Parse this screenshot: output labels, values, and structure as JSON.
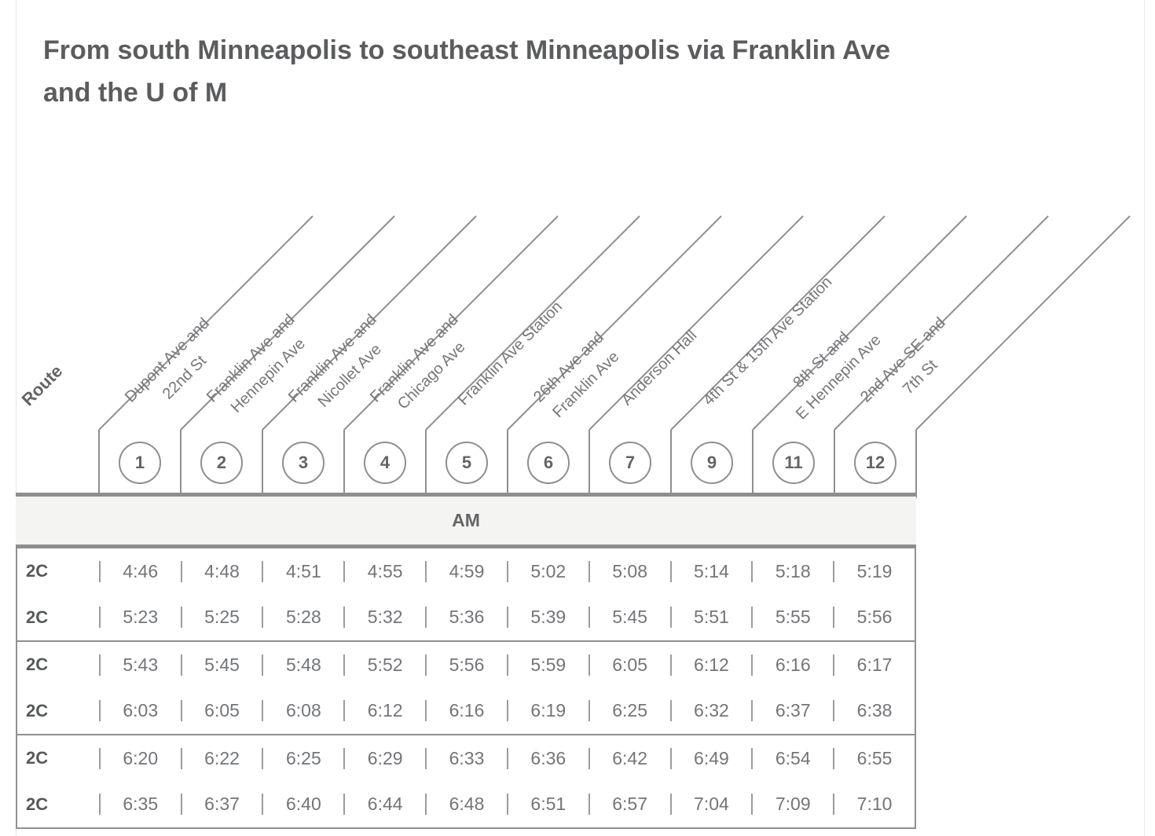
{
  "title": "From south Minneapolis to southeast Minneapolis via Franklin Ave and the U of M",
  "table": {
    "route_header": "Route",
    "period_label": "AM",
    "stops": [
      {
        "number": "1",
        "name_lines": [
          "Dupont Ave and",
          "22nd St"
        ]
      },
      {
        "number": "2",
        "name_lines": [
          "Franklin Ave and",
          "Hennepin Ave"
        ]
      },
      {
        "number": "3",
        "name_lines": [
          "Franklin Ave and",
          "Nicollet Ave"
        ]
      },
      {
        "number": "4",
        "name_lines": [
          "Franklin Ave and",
          "Chicago Ave"
        ]
      },
      {
        "number": "5",
        "name_lines": [
          "Franklin Ave Station"
        ]
      },
      {
        "number": "6",
        "name_lines": [
          "26th Ave and",
          "Franklin Ave"
        ]
      },
      {
        "number": "7",
        "name_lines": [
          "Anderson Hall"
        ]
      },
      {
        "number": "9",
        "name_lines": [
          "4th St & 15th Ave Station"
        ]
      },
      {
        "number": "11",
        "name_lines": [
          "8th St and",
          "E Hennepin Ave"
        ]
      },
      {
        "number": "12",
        "name_lines": [
          "2nd Ave SE and",
          "7th St"
        ]
      }
    ],
    "rows": [
      {
        "route": "2C",
        "times": [
          "4:46",
          "4:48",
          "4:51",
          "4:55",
          "4:59",
          "5:02",
          "5:08",
          "5:14",
          "5:18",
          "5:19"
        ]
      },
      {
        "route": "2C",
        "times": [
          "5:23",
          "5:25",
          "5:28",
          "5:32",
          "5:36",
          "5:39",
          "5:45",
          "5:51",
          "5:55",
          "5:56"
        ]
      },
      {
        "route": "2C",
        "times": [
          "5:43",
          "5:45",
          "5:48",
          "5:52",
          "5:56",
          "5:59",
          "6:05",
          "6:12",
          "6:16",
          "6:17"
        ]
      },
      {
        "route": "2C",
        "times": [
          "6:03",
          "6:05",
          "6:08",
          "6:12",
          "6:16",
          "6:19",
          "6:25",
          "6:32",
          "6:37",
          "6:38"
        ]
      },
      {
        "route": "2C",
        "times": [
          "6:20",
          "6:22",
          "6:25",
          "6:29",
          "6:33",
          "6:36",
          "6:42",
          "6:49",
          "6:54",
          "6:55"
        ]
      },
      {
        "route": "2C",
        "times": [
          "6:35",
          "6:37",
          "6:40",
          "6:44",
          "6:48",
          "6:51",
          "6:57",
          "7:04",
          "7:09",
          "7:10"
        ]
      }
    ]
  },
  "colors": {
    "title_text": "#5b5c5e",
    "line_gray": "#8e8f90",
    "thick_bar": "#8d8e8f",
    "band_background": "#f4f4f2",
    "route_text": "#56585a",
    "time_text": "#737578",
    "card_border": "#e7e7e4"
  }
}
